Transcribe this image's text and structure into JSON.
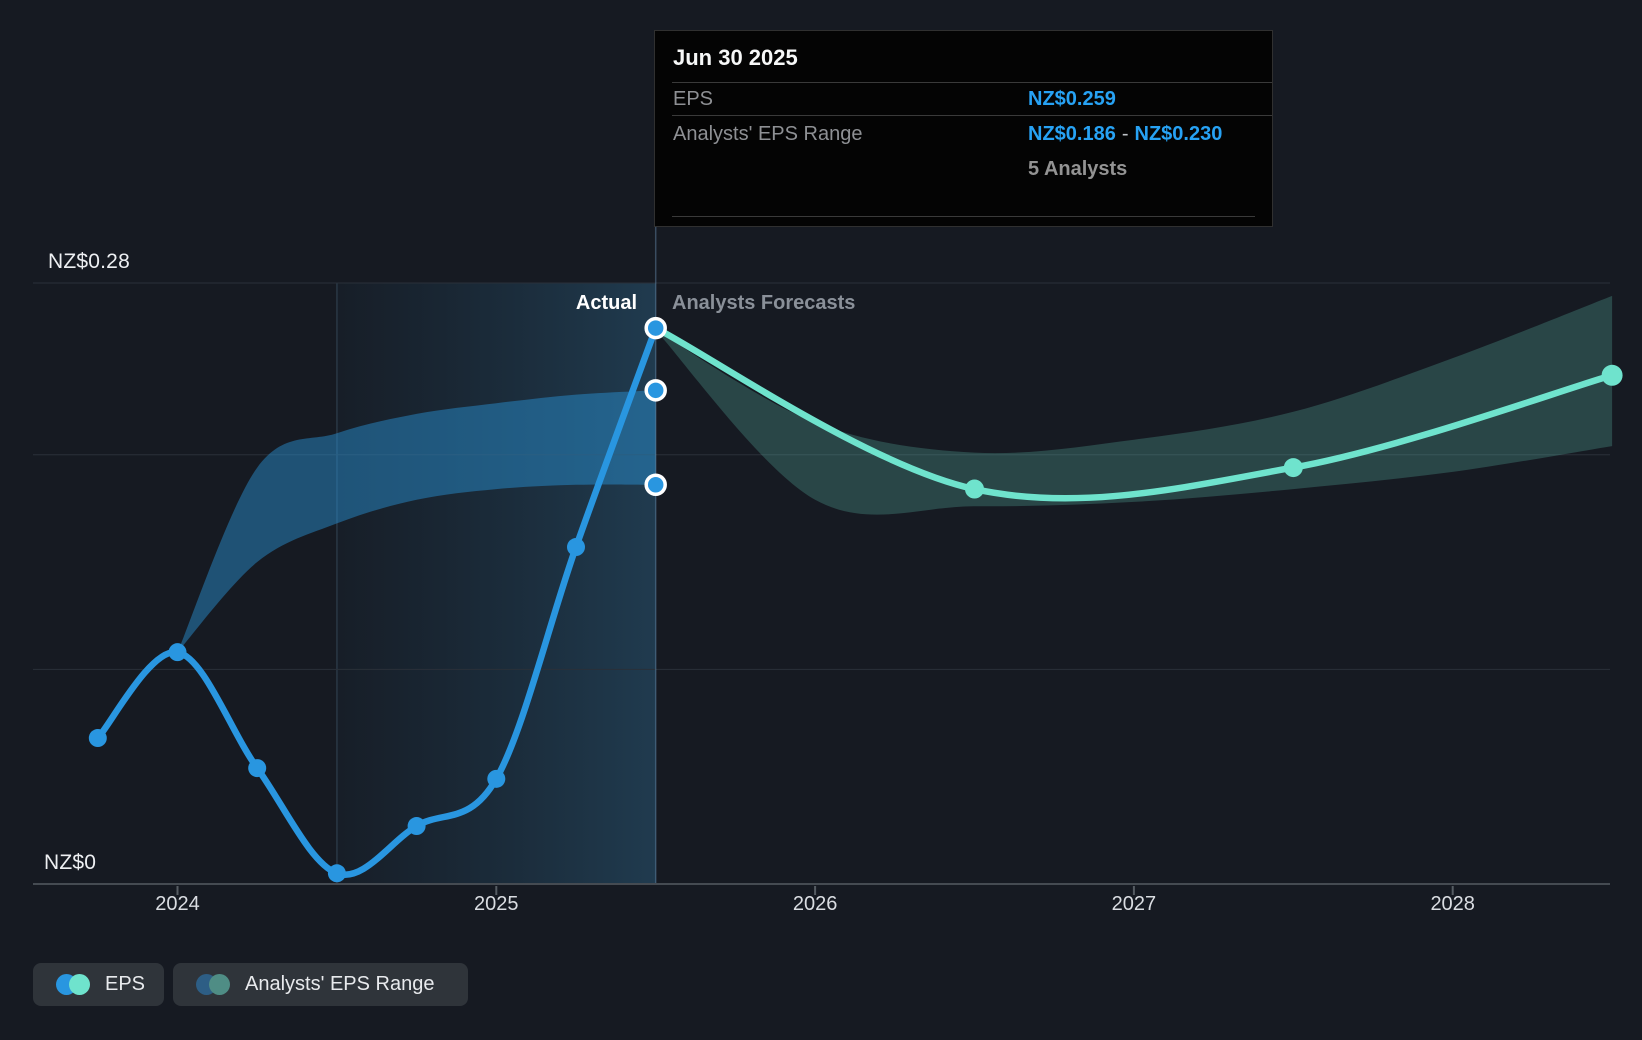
{
  "tooltip": {
    "title": "Jun 30 2025",
    "eps_label": "EPS",
    "eps_value": "NZ$0.259",
    "range_label": "Analysts' EPS Range",
    "range_low": "NZ$0.186",
    "range_sep": "-",
    "range_high": "NZ$0.230",
    "analysts_count": "5 Analysts"
  },
  "labels": {
    "actual": "Actual",
    "forecast": "Analysts Forecasts",
    "y_max": "NZ$0.28",
    "y_zero": "NZ$0"
  },
  "legend": {
    "items": [
      {
        "label": "EPS",
        "dot_left": "#2996E0",
        "dot_right": "#6FE3CD"
      },
      {
        "label": "Analysts' EPS Range",
        "dot_left": "#2D5E85",
        "dot_right": "#4F8D85"
      }
    ]
  },
  "chart_data": {
    "type": "line",
    "unit": "NZ$",
    "y_axis": {
      "min": 0,
      "max": 0.28,
      "top_label": "NZ$0.28",
      "zero_label": "NZ$0",
      "gridline_values": [
        0,
        0.1,
        0.2,
        0.28
      ]
    },
    "x_axis": {
      "tick_years": [
        2024,
        2025,
        2026,
        2027,
        2028
      ],
      "divider_year": 2025.5,
      "divider_label": "Jun 30 2025",
      "highlight_span": [
        2024.5,
        2025.5
      ]
    },
    "series": [
      {
        "name": "EPS",
        "kind": "actual",
        "color": "#2996E0",
        "points": [
          {
            "date": "Sep 30 2023",
            "t": 2023.75,
            "eps": 0.068
          },
          {
            "date": "Dec 31 2023",
            "t": 2024.0,
            "eps": 0.108
          },
          {
            "date": "Mar 31 2024",
            "t": 2024.25,
            "eps": 0.054
          },
          {
            "date": "Jun 30 2024",
            "t": 2024.5,
            "eps": 0.005
          },
          {
            "date": "Sep 30 2024",
            "t": 2024.75,
            "eps": 0.027
          },
          {
            "date": "Dec 31 2024",
            "t": 2025.0,
            "eps": 0.049
          },
          {
            "date": "Mar 31 2025",
            "t": 2025.25,
            "eps": 0.157
          },
          {
            "date": "Jun 30 2025",
            "t": 2025.5,
            "eps": 0.259
          }
        ]
      },
      {
        "name": "EPS (Analysts Forecast)",
        "kind": "forecast",
        "color": "#6FE3CD",
        "points": [
          {
            "date": "Jun 30 2025",
            "t": 2025.5,
            "eps": 0.259
          },
          {
            "date": "Jun 30 2026",
            "t": 2026.5,
            "eps": 0.184
          },
          {
            "date": "Jun 30 2027",
            "t": 2027.5,
            "eps": 0.194
          },
          {
            "date": "Jun 30 2028",
            "t": 2028.5,
            "eps": 0.237
          }
        ]
      }
    ],
    "bands": [
      {
        "name": "Analysts' EPS Range (past)",
        "fill": "rgba(42,150,220,0.45)",
        "points": [
          [
            2024.0,
            0.108,
            0.108
          ],
          [
            2024.25,
            0.15,
            0.194
          ],
          [
            2024.5,
            0.168,
            0.21
          ],
          [
            2024.75,
            0.179,
            0.219
          ],
          [
            2025.0,
            0.184,
            0.224
          ],
          [
            2025.25,
            0.186,
            0.228
          ],
          [
            2025.5,
            0.186,
            0.23
          ]
        ]
      },
      {
        "name": "Analysts' EPS Range (forecast)",
        "fill": "rgba(111,227,205,0.22)",
        "points": [
          [
            2025.5,
            0.258,
            0.258
          ],
          [
            2026.0,
            0.179,
            0.215
          ],
          [
            2026.5,
            0.176,
            0.201
          ],
          [
            2027.0,
            0.178,
            0.207
          ],
          [
            2027.5,
            0.184,
            0.22
          ],
          [
            2028.0,
            0.192,
            0.245
          ],
          [
            2028.5,
            0.204,
            0.274
          ]
        ]
      }
    ],
    "divider_marker_values": [
      0.23,
      0.186
    ]
  }
}
